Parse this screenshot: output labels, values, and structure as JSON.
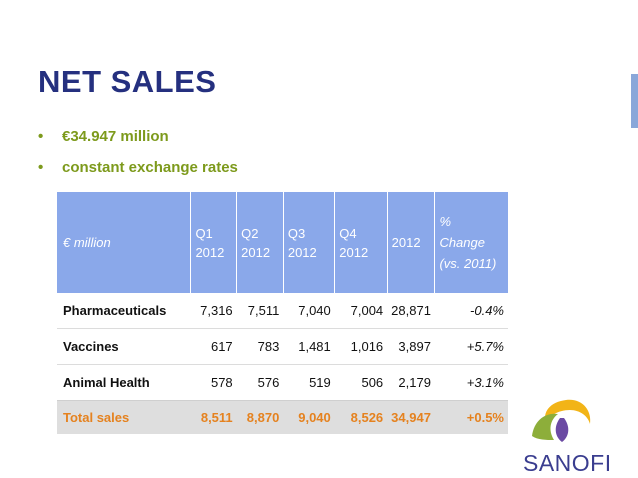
{
  "slide": {
    "title": "NET SALES",
    "bullets": [
      {
        "marker": "•",
        "text": "€34.947 million"
      },
      {
        "marker": "•",
        "text": "constant exchange rates"
      }
    ]
  },
  "table": {
    "header": {
      "label": "€ million",
      "q1": [
        "Q1",
        "2012"
      ],
      "q2": [
        "Q2",
        "2012"
      ],
      "q3": [
        "Q3",
        "2012"
      ],
      "q4": [
        "Q4",
        "2012"
      ],
      "year": "2012",
      "change": [
        "%",
        "Change",
        "(vs. 2011)"
      ]
    },
    "rows": [
      {
        "name": "Pharmaceuticals",
        "q1": "7,316",
        "q2": "7,511",
        "q3": "7,040",
        "q4": "7,004",
        "year": "28,871",
        "change": "-0.4%"
      },
      {
        "name": "Vaccines",
        "q1": "617",
        "q2": "783",
        "q3": "1,481",
        "q4": "1,016",
        "year": "3,897",
        "change": "+5.7%"
      },
      {
        "name": "Animal Health",
        "q1": "578",
        "q2": "576",
        "q3": "519",
        "q4": "506",
        "year": "2,179",
        "change": "+3.1%"
      }
    ],
    "total": {
      "name": "Total sales",
      "q1": "8,511",
      "q2": "8,870",
      "q3": "9,040",
      "q4": "8,526",
      "year": "34,947",
      "change": "+0.5%"
    }
  },
  "logo": {
    "text": "SANOFI"
  },
  "colors": {
    "title": "#25307f",
    "bullet_text": "#7d9a1c",
    "header_bg": "#8aa8ea",
    "total_text": "#e5821f",
    "total_bg": "#dedede",
    "logo_text": "#3a3d8f"
  }
}
